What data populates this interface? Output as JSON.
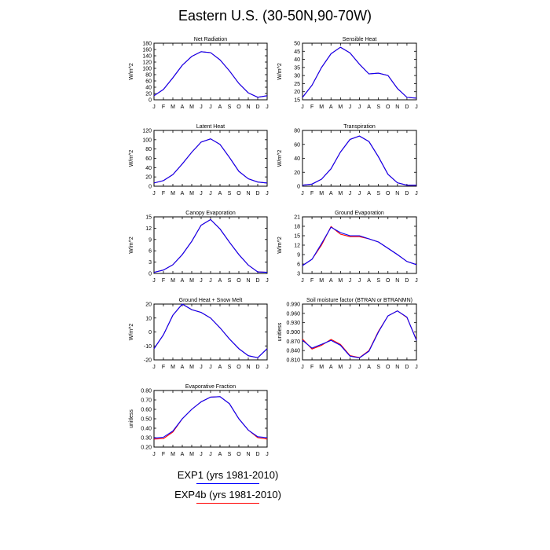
{
  "figure": {
    "title": "Eastern U.S. (30-50N,90-70W)",
    "legend": [
      {
        "label": "EXP1 (yrs 1981-2010)",
        "color": "#0000ff"
      },
      {
        "label": "EXP4b (yrs 1981-2010)",
        "color": "#ff0000"
      }
    ]
  },
  "chart_data": [
    {
      "type": "line",
      "title": "Net Radiation",
      "ylabel": "W/m^2",
      "categories": [
        "J",
        "F",
        "M",
        "A",
        "M",
        "J",
        "J",
        "A",
        "S",
        "O",
        "N",
        "D",
        "J"
      ],
      "ylim": [
        0,
        180
      ],
      "yticks": [
        "0",
        "20",
        "40",
        "60",
        "80",
        "100",
        "120",
        "140",
        "160",
        "180"
      ],
      "series": [
        {
          "name": "EXP1",
          "color": "#0000ff",
          "values": [
            13,
            33,
            70,
            110,
            138,
            153,
            150,
            127,
            92,
            52,
            22,
            8,
            13
          ]
        },
        {
          "name": "EXP4b",
          "color": "#ff0000",
          "values": [
            13,
            33,
            70,
            110,
            138,
            153,
            150,
            127,
            92,
            52,
            22,
            8,
            13
          ]
        }
      ]
    },
    {
      "type": "line",
      "title": "Sensible Heat",
      "ylabel": "W/m^2",
      "categories": [
        "J",
        "F",
        "M",
        "A",
        "M",
        "J",
        "J",
        "A",
        "S",
        "O",
        "N",
        "D",
        "J"
      ],
      "ylim": [
        15,
        50
      ],
      "yticks": [
        "15",
        "20",
        "25",
        "30",
        "35",
        "40",
        "45",
        "50"
      ],
      "series": [
        {
          "name": "EXP1",
          "color": "#0000ff",
          "values": [
            16.5,
            24,
            35,
            43.5,
            47.5,
            44,
            37,
            31,
            31.5,
            30,
            22,
            16.5,
            16
          ]
        },
        {
          "name": "EXP4b",
          "color": "#ff0000",
          "values": [
            16.5,
            24,
            35,
            43.5,
            47.5,
            44,
            37,
            31,
            31.5,
            30,
            22,
            16.5,
            16
          ]
        }
      ]
    },
    {
      "type": "line",
      "title": "Latent Heat",
      "ylabel": "W/m^2",
      "categories": [
        "J",
        "F",
        "M",
        "A",
        "M",
        "J",
        "J",
        "A",
        "S",
        "O",
        "N",
        "D",
        "J"
      ],
      "ylim": [
        0,
        120
      ],
      "yticks": [
        "0",
        "20",
        "40",
        "60",
        "80",
        "100",
        "120"
      ],
      "series": [
        {
          "name": "EXP1",
          "color": "#0000ff",
          "values": [
            7,
            12,
            25,
            48,
            73,
            95,
            102,
            90,
            62,
            32,
            16,
            9,
            7
          ]
        },
        {
          "name": "EXP4b",
          "color": "#ff0000",
          "values": [
            7,
            12,
            25,
            48,
            73,
            95,
            102,
            90,
            62,
            32,
            16,
            9,
            7
          ]
        }
      ]
    },
    {
      "type": "line",
      "title": "Transpiration",
      "ylabel": "W/m^2",
      "categories": [
        "J",
        "F",
        "M",
        "A",
        "M",
        "J",
        "J",
        "A",
        "S",
        "O",
        "N",
        "D",
        "J"
      ],
      "ylim": [
        0,
        80
      ],
      "yticks": [
        "0",
        "20",
        "40",
        "60",
        "80"
      ],
      "series": [
        {
          "name": "EXP1",
          "color": "#0000ff",
          "values": [
            1.5,
            3,
            10,
            25,
            49,
            67,
            72,
            64,
            42,
            17,
            5,
            1.5,
            1.5
          ]
        },
        {
          "name": "EXP4b",
          "color": "#ff0000",
          "values": [
            1.5,
            3,
            10,
            25,
            49,
            67,
            72,
            64,
            42,
            17,
            5,
            1.5,
            1.5
          ]
        }
      ]
    },
    {
      "type": "line",
      "title": "Canopy Evaporation",
      "ylabel": "W/m^2",
      "categories": [
        "J",
        "F",
        "M",
        "A",
        "M",
        "J",
        "J",
        "A",
        "S",
        "O",
        "N",
        "D",
        "J"
      ],
      "ylim": [
        0,
        15
      ],
      "yticks": [
        "0",
        "3",
        "6",
        "9",
        "12",
        "15"
      ],
      "series": [
        {
          "name": "EXP1",
          "color": "#0000ff",
          "values": [
            0.3,
            0.9,
            2.3,
            5,
            8.5,
            12.8,
            14.3,
            11.8,
            8.3,
            5,
            2.2,
            0.4,
            0.3
          ]
        },
        {
          "name": "EXP4b",
          "color": "#ff0000",
          "values": [
            0.3,
            0.9,
            2.3,
            5,
            8.5,
            12.8,
            14.3,
            11.8,
            8.3,
            5,
            2.2,
            0.4,
            0.3
          ]
        }
      ]
    },
    {
      "type": "line",
      "title": "Ground Evaporation",
      "ylabel": "W/m^2",
      "categories": [
        "J",
        "F",
        "M",
        "A",
        "M",
        "J",
        "J",
        "A",
        "S",
        "O",
        "N",
        "D",
        "J"
      ],
      "ylim": [
        3,
        21
      ],
      "yticks": [
        "3",
        "6",
        "9",
        "12",
        "15",
        "18",
        "21"
      ],
      "series": [
        {
          "name": "EXP1",
          "color": "#0000ff",
          "values": [
            5.5,
            7.5,
            12.5,
            17.7,
            16,
            15,
            15,
            14,
            13,
            11,
            9,
            6.8,
            5.8
          ]
        },
        {
          "name": "EXP4b",
          "color": "#ff0000",
          "values": [
            5.5,
            7.5,
            12,
            17.9,
            15.5,
            14.7,
            14.7,
            14,
            13,
            11,
            9,
            6.8,
            5.8
          ]
        }
      ]
    },
    {
      "type": "line",
      "title": "Ground Heat + Snow Melt",
      "ylabel": "W/m^2",
      "categories": [
        "J",
        "F",
        "M",
        "A",
        "M",
        "J",
        "J",
        "A",
        "S",
        "O",
        "N",
        "D",
        "J"
      ],
      "ylim": [
        -20,
        20
      ],
      "yticks": [
        "-20",
        "-10",
        "0",
        "10",
        "20"
      ],
      "series": [
        {
          "name": "EXP1",
          "color": "#0000ff",
          "values": [
            -12,
            -2,
            12,
            20,
            16,
            14,
            10,
            3,
            -5,
            -12,
            -17,
            -18.5,
            -12
          ]
        },
        {
          "name": "EXP4b",
          "color": "#ff0000",
          "values": [
            -12,
            -2,
            12,
            20,
            16,
            14,
            10,
            3,
            -5,
            -12,
            -17,
            -18.5,
            -12
          ]
        }
      ]
    },
    {
      "type": "line",
      "title": "Soil moisture factor (BTRAN or BTRANMN)",
      "ylabel": "unitless",
      "categories": [
        "J",
        "F",
        "M",
        "A",
        "M",
        "J",
        "J",
        "A",
        "S",
        "O",
        "N",
        "D",
        "J"
      ],
      "ylim": [
        0.81,
        0.99
      ],
      "yticks": [
        "0.810",
        "0.840",
        "0.870",
        "0.900",
        "0.930",
        "0.960",
        "0.990"
      ],
      "series": [
        {
          "name": "EXP1",
          "color": "#0000ff",
          "values": [
            0.873,
            0.848,
            0.86,
            0.873,
            0.857,
            0.822,
            0.816,
            0.838,
            0.9,
            0.952,
            0.968,
            0.948,
            0.873
          ]
        },
        {
          "name": "EXP4b",
          "color": "#ff0000",
          "values": [
            0.877,
            0.845,
            0.857,
            0.876,
            0.86,
            0.824,
            0.817,
            0.84,
            0.902,
            0.952,
            0.968,
            0.947,
            0.875
          ]
        }
      ]
    },
    {
      "type": "line",
      "title": "Evaporative Fraction",
      "ylabel": "unitless",
      "categories": [
        "J",
        "F",
        "M",
        "A",
        "M",
        "J",
        "J",
        "A",
        "S",
        "O",
        "N",
        "D",
        "J"
      ],
      "ylim": [
        0.2,
        0.8
      ],
      "yticks": [
        "0.20",
        "0.30",
        "0.40",
        "0.50",
        "0.60",
        "0.70",
        "0.80"
      ],
      "series": [
        {
          "name": "EXP1",
          "color": "#0000ff",
          "values": [
            0.295,
            0.305,
            0.37,
            0.5,
            0.6,
            0.68,
            0.73,
            0.735,
            0.66,
            0.5,
            0.38,
            0.31,
            0.3
          ]
        },
        {
          "name": "EXP4b",
          "color": "#ff0000",
          "values": [
            0.285,
            0.29,
            0.36,
            0.5,
            0.6,
            0.68,
            0.73,
            0.735,
            0.66,
            0.5,
            0.38,
            0.3,
            0.285
          ]
        }
      ]
    }
  ]
}
